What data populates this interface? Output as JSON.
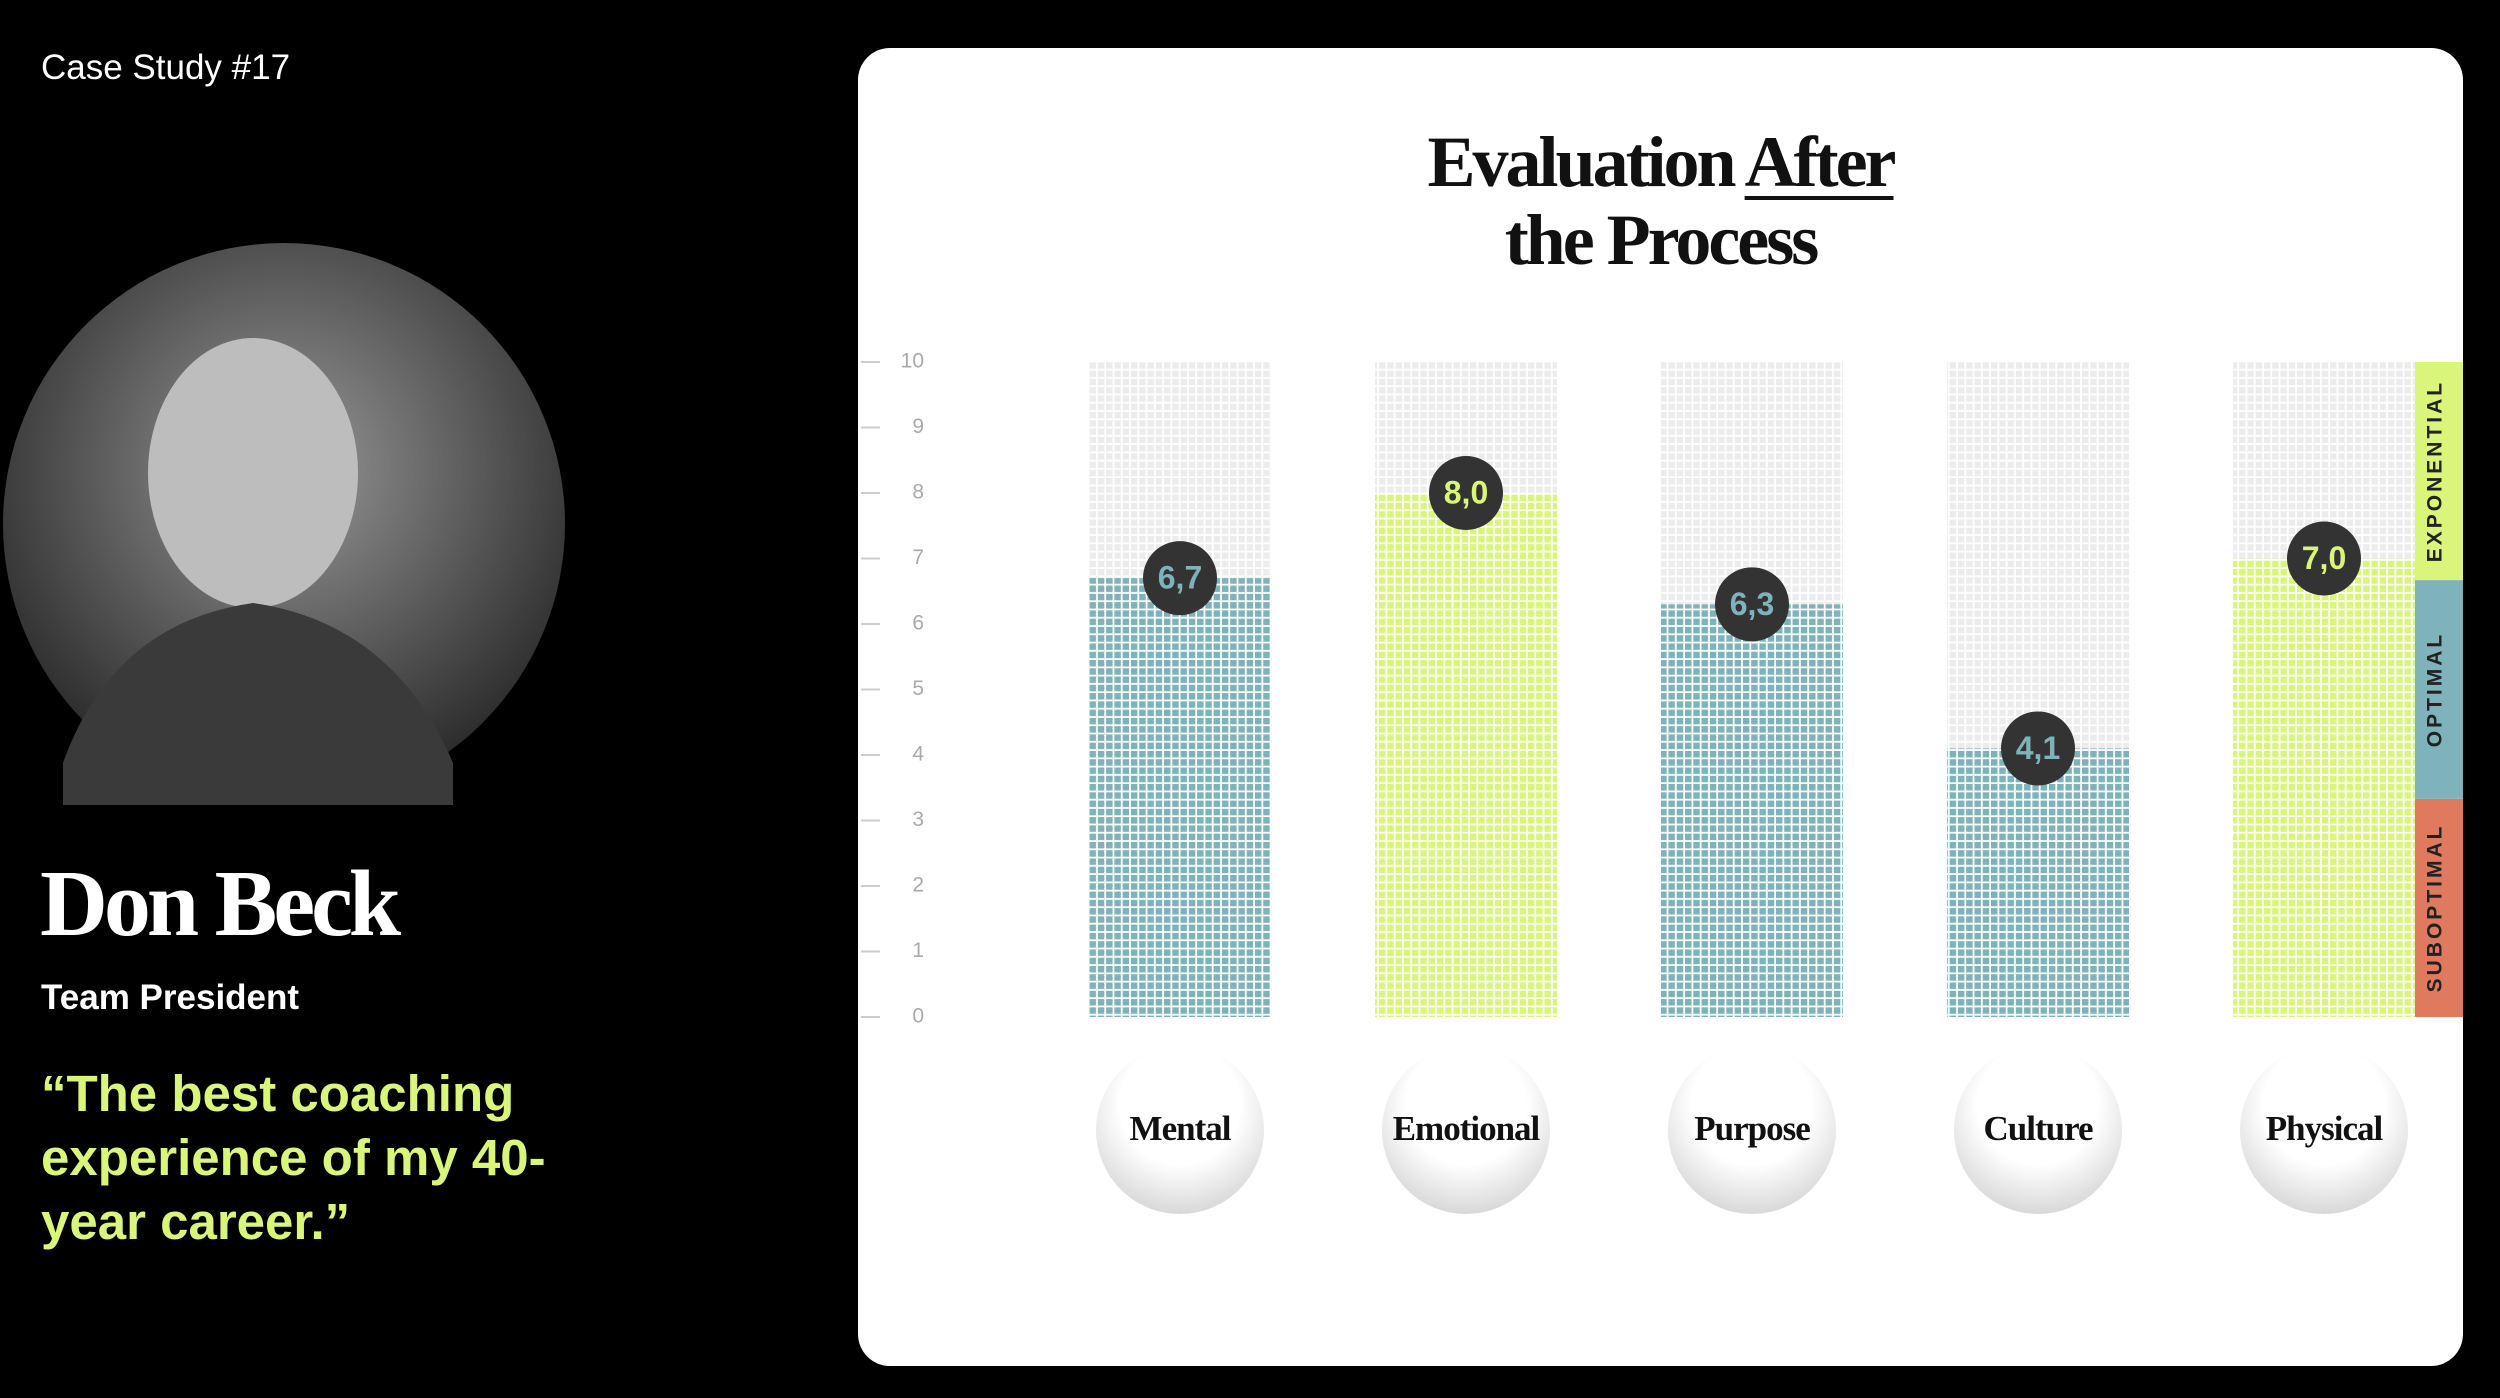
{
  "profile": {
    "case": "Case Study #17",
    "name": "Don Beck",
    "role": "Team President",
    "quote": "“The best coaching experience of my 40-year career.”"
  },
  "chart_data": {
    "type": "bar",
    "title": [
      "Evaluation",
      "After",
      "the Process"
    ],
    "categories": [
      "Mental",
      "Emotional",
      "Purpose",
      "Culture",
      "Physical"
    ],
    "values": [
      6.7,
      8.0,
      6.3,
      4.1,
      7.0
    ],
    "value_labels": [
      "6,7",
      "8,0",
      "6,3",
      "4,1",
      "7,0"
    ],
    "colors": [
      "#7fb3bb",
      "#d9f57a",
      "#7fb3bb",
      "#7fb3bb",
      "#d9f57a"
    ],
    "ylim": [
      0,
      10
    ],
    "yticks": [
      0,
      1,
      2,
      3,
      4,
      5,
      6,
      7,
      8,
      9,
      10
    ],
    "zones": [
      {
        "name": "SUBOPTIMAL",
        "from": 0,
        "to": 3.33,
        "color": "#e07a5f"
      },
      {
        "name": "OPTIMAL",
        "from": 3.33,
        "to": 6.67,
        "color": "#7fb3bb"
      },
      {
        "name": "EXPONENTIAL",
        "from": 6.67,
        "to": 10,
        "color": "#d9f57a"
      }
    ]
  }
}
